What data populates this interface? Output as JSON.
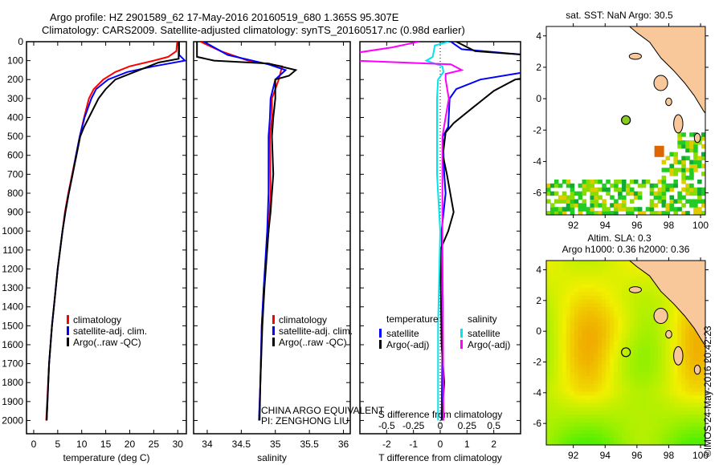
{
  "header": {
    "title_line1": "Argo profile: HZ 2901589_62 17-May-2016 20160519_680 1.365S 95.307E",
    "title_line2": "Climatology: CARS2009. Satellite-adjusted climatology: synTS_20160517.nc (0.98d earlier)"
  },
  "colors": {
    "climatology": "#ff0000",
    "satellite": "#0000ff",
    "argo": "#000000",
    "s_satellite": "#00e5ee",
    "s_argo": "#ff00ff",
    "land": "#f8c89a"
  },
  "chart_data": [
    {
      "type": "line",
      "name": "temperature",
      "xlabel": "temperature (deg C)",
      "ylabel": "depth",
      "xlim": [
        -1.5,
        31.8
      ],
      "ylim": [
        2070,
        0
      ],
      "xticks": [
        0,
        5,
        10,
        15,
        20,
        25,
        30
      ],
      "yticks": [
        0,
        100,
        200,
        300,
        400,
        500,
        600,
        700,
        800,
        900,
        1000,
        1100,
        1200,
        1300,
        1400,
        1500,
        1600,
        1700,
        1800,
        1900,
        2000
      ],
      "legend": [
        "climatology",
        "satellite-adj. clim.",
        "Argo(..raw -QC)"
      ],
      "series": [
        {
          "name": "climatology",
          "color": "#ff0000",
          "points": [
            [
              29.9,
              0
            ],
            [
              29.7,
              50
            ],
            [
              28,
              80
            ],
            [
              25,
              100
            ],
            [
              20,
              130
            ],
            [
              17,
              160
            ],
            [
              14.5,
              200
            ],
            [
              12.5,
              250
            ],
            [
              11.5,
              300
            ],
            [
              10.5,
              400
            ],
            [
              9.6,
              500
            ],
            [
              8.8,
              600
            ],
            [
              8,
              700
            ],
            [
              7.2,
              800
            ],
            [
              6.5,
              900
            ],
            [
              6,
              1000
            ],
            [
              5,
              1200
            ],
            [
              4.2,
              1400
            ],
            [
              3.8,
              1500
            ],
            [
              3.2,
              1700
            ],
            [
              2.6,
              2000
            ]
          ]
        },
        {
          "name": "satellite-adj. clim.",
          "color": "#0000ff",
          "points": [
            [
              30.3,
              0
            ],
            [
              30.3,
              70
            ],
            [
              31.5,
              100
            ],
            [
              25,
              130
            ],
            [
              19.5,
              160
            ],
            [
              15.5,
              200
            ],
            [
              13,
              250
            ],
            [
              12,
              300
            ],
            [
              10.6,
              400
            ],
            [
              9.6,
              500
            ],
            [
              8.8,
              600
            ],
            [
              8.1,
              700
            ],
            [
              7.3,
              800
            ],
            [
              6.6,
              900
            ],
            [
              6,
              1000
            ],
            [
              5,
              1200
            ],
            [
              4.2,
              1400
            ],
            [
              3.8,
              1500
            ],
            [
              3.2,
              1700
            ],
            [
              2.7,
              2000
            ]
          ]
        },
        {
          "name": "Argo(..raw -QC)",
          "color": "#000000",
          "points": [
            [
              30.2,
              0
            ],
            [
              30.2,
              90
            ],
            [
              26,
              110
            ],
            [
              22,
              150
            ],
            [
              17,
              200
            ],
            [
              15,
              250
            ],
            [
              13.5,
              300
            ],
            [
              11.5,
              400
            ],
            [
              10.5,
              450
            ],
            [
              9.7,
              500
            ],
            [
              8.9,
              600
            ],
            [
              8.1,
              700
            ],
            [
              7.3,
              800
            ],
            [
              6.6,
              900
            ],
            [
              6,
              1000
            ],
            [
              5,
              1200
            ],
            [
              4.2,
              1400
            ],
            [
              3.8,
              1500
            ],
            [
              3.2,
              1700
            ],
            [
              2.7,
              2000
            ]
          ]
        }
      ]
    },
    {
      "type": "line",
      "name": "salinity",
      "xlabel": "salinity",
      "xlim": [
        33.8,
        36.1
      ],
      "ylim": [
        2070,
        0
      ],
      "xticks": [
        34,
        34.5,
        35,
        35.5,
        36
      ],
      "legend": [
        "climatology",
        "satellite-adj. clim.",
        "Argo(..raw -QC)"
      ],
      "annotation": [
        "CHINA ARGO EQUIVALENT",
        "PI: ZENGHONG LIU"
      ],
      "series": [
        {
          "name": "climatology",
          "color": "#ff0000",
          "points": [
            [
              33.9,
              0
            ],
            [
              34.2,
              50
            ],
            [
              34.6,
              100
            ],
            [
              35.1,
              130
            ],
            [
              35.05,
              200
            ],
            [
              34.95,
              300
            ],
            [
              34.95,
              400
            ],
            [
              34.92,
              500
            ],
            [
              34.93,
              800
            ],
            [
              34.9,
              1000
            ],
            [
              34.83,
              1300
            ],
            [
              34.8,
              1500
            ],
            [
              34.78,
              1800
            ],
            [
              34.76,
              2000
            ]
          ]
        },
        {
          "name": "satellite-adj. clim.",
          "color": "#0000ff",
          "points": [
            [
              33.95,
              0
            ],
            [
              34.3,
              70
            ],
            [
              34.9,
              120
            ],
            [
              35.15,
              150
            ],
            [
              35.0,
              200
            ],
            [
              34.93,
              300
            ],
            [
              34.92,
              400
            ],
            [
              34.9,
              500
            ],
            [
              34.9,
              800
            ],
            [
              34.88,
              1000
            ],
            [
              34.83,
              1300
            ],
            [
              34.8,
              1500
            ],
            [
              34.78,
              1800
            ],
            [
              34.76,
              2000
            ]
          ]
        },
        {
          "name": "Argo(..raw -QC)",
          "color": "#000000",
          "points": [
            [
              33.85,
              0
            ],
            [
              33.85,
              80
            ],
            [
              34.1,
              100
            ],
            [
              34.9,
              115
            ],
            [
              35.3,
              150
            ],
            [
              35.2,
              180
            ],
            [
              35.0,
              200
            ],
            [
              35.0,
              300
            ],
            [
              34.97,
              400
            ],
            [
              34.95,
              500
            ],
            [
              34.97,
              700
            ],
            [
              34.93,
              900
            ],
            [
              34.9,
              1000
            ],
            [
              34.84,
              1300
            ],
            [
              34.81,
              1500
            ],
            [
              34.78,
              1800
            ],
            [
              34.77,
              2000
            ]
          ]
        }
      ]
    },
    {
      "type": "line",
      "name": "differences",
      "xlabel": "T difference from climatology",
      "xlabel2": "S difference from climatology",
      "xlim": [
        -3,
        3
      ],
      "s_scale": 0.25,
      "xticks": [
        -2,
        -1,
        0,
        1,
        2
      ],
      "xticks2": [
        -0.5,
        -0.25,
        0,
        0.25,
        0.5
      ],
      "legend_t_title": "temperature",
      "legend_s_title": "salinity",
      "legend_t": [
        "satellite",
        "Argo(-adj)"
      ],
      "legend_s": [
        "satellite",
        "Argo(-adj)"
      ],
      "series": [
        {
          "name": "T satellite",
          "color": "#0000ff",
          "unit": "T",
          "points": [
            [
              0.4,
              0
            ],
            [
              0.8,
              40
            ],
            [
              3.2,
              70
            ],
            [
              3.2,
              160
            ],
            [
              1.5,
              200
            ],
            [
              0.6,
              250
            ],
            [
              0.35,
              300
            ],
            [
              0.3,
              450
            ],
            [
              0.1,
              500
            ],
            [
              0.15,
              700
            ],
            [
              0.2,
              800
            ],
            [
              0.05,
              1000
            ],
            [
              0.1,
              1400
            ],
            [
              0.05,
              2000
            ]
          ]
        },
        {
          "name": "T Argo(-adj)",
          "color": "#000000",
          "unit": "T",
          "points": [
            [
              0.6,
              0
            ],
            [
              1.3,
              50
            ],
            [
              3.2,
              70
            ],
            [
              3.2,
              190
            ],
            [
              2.8,
              200
            ],
            [
              2,
              260
            ],
            [
              1.2,
              350
            ],
            [
              0.5,
              430
            ],
            [
              0.2,
              480
            ],
            [
              0.1,
              600
            ],
            [
              0.25,
              700
            ],
            [
              0.5,
              900
            ],
            [
              0.3,
              1000
            ],
            [
              0,
              1100
            ],
            [
              0.05,
              1600
            ],
            [
              0.15,
              1800
            ],
            [
              0.05,
              2000
            ]
          ]
        },
        {
          "name": "S satellite",
          "color": "#00e5ee",
          "unit": "S",
          "points": [
            [
              0.08,
              0
            ],
            [
              -0.05,
              20
            ],
            [
              -0.07,
              80
            ],
            [
              -0.13,
              100
            ],
            [
              0.02,
              130
            ],
            [
              0.03,
              160
            ],
            [
              -0.02,
              200
            ],
            [
              -0.03,
              300
            ],
            [
              -0.03,
              700
            ],
            [
              0,
              1000
            ],
            [
              -0.02,
              1500
            ],
            [
              -0.02,
              2000
            ]
          ]
        },
        {
          "name": "S Argo(-adj)",
          "color": "#ff00ff",
          "unit": "S",
          "points": [
            [
              -0.2,
              0
            ],
            [
              -0.45,
              30
            ],
            [
              -0.8,
              60
            ],
            [
              -0.8,
              100
            ],
            [
              0.1,
              120
            ],
            [
              0.2,
              150
            ],
            [
              0.05,
              170
            ],
            [
              0.05,
              200
            ],
            [
              0.08,
              300
            ],
            [
              0.02,
              500
            ],
            [
              0.02,
              1000
            ],
            [
              0.03,
              2000
            ]
          ]
        }
      ]
    }
  ],
  "map_sst": {
    "title": "sat. SST: NaN Argo: 30.5",
    "xticks": [
      92,
      94,
      96,
      98,
      100
    ],
    "yticks": [
      4,
      2,
      0,
      -2,
      -4,
      -6
    ],
    "lon_range": [
      90.3,
      100.3
    ],
    "lat_range": [
      -7.4,
      4.6
    ],
    "float_lon": 95.307,
    "float_lat": -1.365
  },
  "map_sla": {
    "title_line1": "Altim. SLA: 0.3",
    "title_line2": "Argo h1000: 0.36 h2000: 0.36",
    "xticks": [
      92,
      94,
      96,
      98,
      100
    ],
    "yticks": [
      4,
      2,
      0,
      -2,
      -4,
      -6
    ],
    "lon_range": [
      90.3,
      100.3
    ],
    "lat_range": [
      -7.4,
      4.6
    ],
    "float_lon": 95.307,
    "float_lat": -1.365
  },
  "credit": "©IMOS 24-May-2016 20:42:23"
}
